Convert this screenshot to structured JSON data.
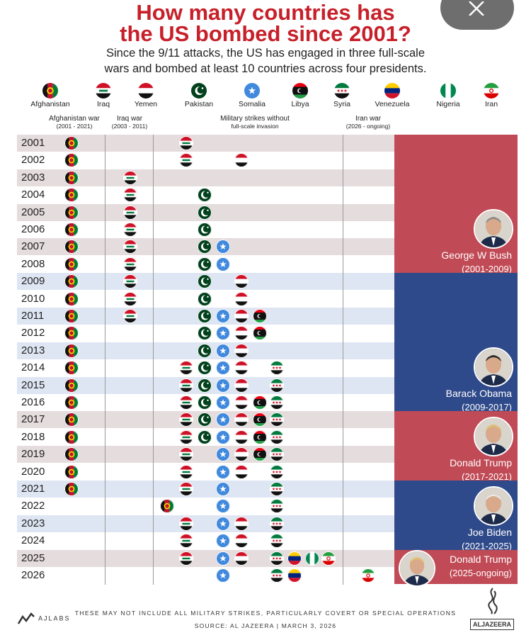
{
  "header": {
    "title_line1": "How many countries has",
    "title_line2": "the US bombed since 2001?",
    "subtitle_line1": "Since the 9/11 attacks, the US has engaged in three full-scale",
    "subtitle_line2": "wars and bombed at least 10 countries across four presidents."
  },
  "countries": [
    {
      "key": "afghanistan",
      "label": "Afghanistan",
      "icon": "afghanistan-flag-icon"
    },
    {
      "key": "iraq",
      "label": "Iraq",
      "icon": "iraq-flag-icon"
    },
    {
      "key": "yemen",
      "label": "Yemen",
      "icon": "yemen-flag-icon"
    },
    {
      "key": "pakistan",
      "label": "Pakistan",
      "icon": "pakistan-flag-icon"
    },
    {
      "key": "somalia",
      "label": "Somalia",
      "icon": "somalia-flag-icon"
    },
    {
      "key": "libya",
      "label": "Libya",
      "icon": "libya-flag-icon"
    },
    {
      "key": "syria",
      "label": "Syria",
      "icon": "syria-flag-icon"
    },
    {
      "key": "venezuela",
      "label": "Venezuela",
      "icon": "venezuela-flag-icon"
    },
    {
      "key": "nigeria",
      "label": "Nigeria",
      "icon": "nigeria-flag-icon"
    },
    {
      "key": "iran",
      "label": "Iran",
      "icon": "iran-flag-icon"
    }
  ],
  "groups": [
    {
      "label": "Afghanistan war",
      "sub": "(2001 - 2021)"
    },
    {
      "label": "Iraq war",
      "sub": "(2003 - 2011)"
    },
    {
      "label": "Military strikes without",
      "sub": "full-scale invasion"
    },
    {
      "label": "Iran war",
      "sub": "(2026 - ongoing)"
    }
  ],
  "presidents": [
    {
      "name": "George W Bush",
      "term": "(2001-2009)",
      "color": "#c04a55",
      "icon": "bush-portrait-icon"
    },
    {
      "name": "Barack Obama",
      "term": "(2009-2017)",
      "color": "#2f4a8a",
      "icon": "obama-portrait-icon"
    },
    {
      "name": "Donald Trump",
      "term": "(2017-2021)",
      "color": "#c04a55",
      "icon": "trump-portrait-icon"
    },
    {
      "name": "Joe Biden",
      "term": "(2021-2025)",
      "color": "#2f4a8a",
      "icon": "biden-portrait-icon"
    },
    {
      "name": "Donald Trump",
      "term": "(2025-ongoing)",
      "color": "#c04a55",
      "icon": "trump-portrait-icon"
    }
  ],
  "chart_data": {
    "type": "table",
    "title": "How many countries has the US bombed since 2001?",
    "years": [
      "2001",
      "2002",
      "2003",
      "2004",
      "2005",
      "2006",
      "2007",
      "2008",
      "2009",
      "2010",
      "2011",
      "2012",
      "2013",
      "2014",
      "2015",
      "2016",
      "2017",
      "2018",
      "2019",
      "2020",
      "2021",
      "2022",
      "2023",
      "2024",
      "2025",
      "2026"
    ],
    "strikes": {
      "2001": [
        [
          "afghanistan",
          "afg"
        ],
        [
          "iraq",
          "strike"
        ]
      ],
      "2002": [
        [
          "afghanistan",
          "afg"
        ],
        [
          "iraq",
          "strike"
        ],
        [
          "yemen",
          "strike"
        ]
      ],
      "2003": [
        [
          "afghanistan",
          "afg"
        ],
        [
          "iraq",
          "war"
        ]
      ],
      "2004": [
        [
          "afghanistan",
          "afg"
        ],
        [
          "iraq",
          "war"
        ],
        [
          "pakistan",
          "strike"
        ]
      ],
      "2005": [
        [
          "afghanistan",
          "afg"
        ],
        [
          "iraq",
          "war"
        ],
        [
          "pakistan",
          "strike"
        ]
      ],
      "2006": [
        [
          "afghanistan",
          "afg"
        ],
        [
          "iraq",
          "war"
        ],
        [
          "pakistan",
          "strike"
        ]
      ],
      "2007": [
        [
          "afghanistan",
          "afg"
        ],
        [
          "iraq",
          "war"
        ],
        [
          "pakistan",
          "strike"
        ],
        [
          "somalia",
          "strike"
        ]
      ],
      "2008": [
        [
          "afghanistan",
          "afg"
        ],
        [
          "iraq",
          "war"
        ],
        [
          "pakistan",
          "strike"
        ],
        [
          "somalia",
          "strike"
        ]
      ],
      "2009": [
        [
          "afghanistan",
          "afg"
        ],
        [
          "iraq",
          "war"
        ],
        [
          "pakistan",
          "strike"
        ],
        [
          "yemen",
          "strike"
        ]
      ],
      "2010": [
        [
          "afghanistan",
          "afg"
        ],
        [
          "iraq",
          "war"
        ],
        [
          "pakistan",
          "strike"
        ],
        [
          "yemen",
          "strike"
        ]
      ],
      "2011": [
        [
          "afghanistan",
          "afg"
        ],
        [
          "iraq",
          "war"
        ],
        [
          "pakistan",
          "strike"
        ],
        [
          "somalia",
          "strike"
        ],
        [
          "yemen",
          "strike"
        ],
        [
          "libya",
          "strike"
        ]
      ],
      "2012": [
        [
          "afghanistan",
          "afg"
        ],
        [
          "pakistan",
          "strike"
        ],
        [
          "somalia",
          "strike"
        ],
        [
          "yemen",
          "strike"
        ],
        [
          "libya",
          "strike"
        ]
      ],
      "2013": [
        [
          "afghanistan",
          "afg"
        ],
        [
          "pakistan",
          "strike"
        ],
        [
          "somalia",
          "strike"
        ],
        [
          "yemen",
          "strike"
        ]
      ],
      "2014": [
        [
          "afghanistan",
          "afg"
        ],
        [
          "iraq",
          "strike"
        ],
        [
          "pakistan",
          "strike"
        ],
        [
          "somalia",
          "strike"
        ],
        [
          "yemen",
          "strike"
        ],
        [
          "syria",
          "strike"
        ]
      ],
      "2015": [
        [
          "afghanistan",
          "afg"
        ],
        [
          "iraq",
          "strike"
        ],
        [
          "pakistan",
          "strike"
        ],
        [
          "somalia",
          "strike"
        ],
        [
          "yemen",
          "strike"
        ],
        [
          "syria",
          "strike"
        ]
      ],
      "2016": [
        [
          "afghanistan",
          "afg"
        ],
        [
          "iraq",
          "strike"
        ],
        [
          "pakistan",
          "strike"
        ],
        [
          "somalia",
          "strike"
        ],
        [
          "yemen",
          "strike"
        ],
        [
          "libya",
          "strike"
        ],
        [
          "syria",
          "strike"
        ]
      ],
      "2017": [
        [
          "afghanistan",
          "afg"
        ],
        [
          "iraq",
          "strike"
        ],
        [
          "pakistan",
          "strike"
        ],
        [
          "somalia",
          "strike"
        ],
        [
          "yemen",
          "strike"
        ],
        [
          "libya",
          "strike"
        ],
        [
          "syria",
          "strike"
        ]
      ],
      "2018": [
        [
          "afghanistan",
          "afg"
        ],
        [
          "iraq",
          "strike"
        ],
        [
          "pakistan",
          "strike"
        ],
        [
          "somalia",
          "strike"
        ],
        [
          "yemen",
          "strike"
        ],
        [
          "libya",
          "strike"
        ],
        [
          "syria",
          "strike"
        ]
      ],
      "2019": [
        [
          "afghanistan",
          "afg"
        ],
        [
          "iraq",
          "strike"
        ],
        [
          "somalia",
          "strike"
        ],
        [
          "yemen",
          "strike"
        ],
        [
          "libya",
          "strike"
        ],
        [
          "syria",
          "strike"
        ]
      ],
      "2020": [
        [
          "afghanistan",
          "afg"
        ],
        [
          "iraq",
          "strike"
        ],
        [
          "somalia",
          "strike"
        ],
        [
          "yemen",
          "strike"
        ],
        [
          "syria",
          "strike"
        ]
      ],
      "2021": [
        [
          "afghanistan",
          "afg"
        ],
        [
          "iraq",
          "strike"
        ],
        [
          "somalia",
          "strike"
        ],
        [
          "syria",
          "strike"
        ]
      ],
      "2022": [
        [
          "afghanistan",
          "strike"
        ],
        [
          "somalia",
          "strike"
        ],
        [
          "syria",
          "strike"
        ]
      ],
      "2023": [
        [
          "iraq",
          "strike"
        ],
        [
          "somalia",
          "strike"
        ],
        [
          "yemen",
          "strike"
        ],
        [
          "syria",
          "strike"
        ]
      ],
      "2024": [
        [
          "iraq",
          "strike"
        ],
        [
          "somalia",
          "strike"
        ],
        [
          "yemen",
          "strike"
        ],
        [
          "syria",
          "strike"
        ]
      ],
      "2025": [
        [
          "iraq",
          "strike"
        ],
        [
          "somalia",
          "strike"
        ],
        [
          "yemen",
          "strike"
        ],
        [
          "syria",
          "strike"
        ],
        [
          "venezuela",
          "strike"
        ],
        [
          "nigeria",
          "strike"
        ],
        [
          "iran",
          "strike"
        ]
      ],
      "2026": [
        [
          "somalia",
          "strike"
        ],
        [
          "syria",
          "strike"
        ],
        [
          "venezuela",
          "strike"
        ],
        [
          "iran",
          "war"
        ]
      ]
    }
  },
  "footer": {
    "note": "THESE MAY NOT INCLUDE ALL MILITARY STRIKES, PARTICULARLY COVERT OR SPECIAL OPERATIONS",
    "source": "SOURCE:  AL JAZEERA  |  MARCH 3, 2026",
    "brand_left": "AJLABS",
    "brand_right": "ALJAZEERA"
  }
}
